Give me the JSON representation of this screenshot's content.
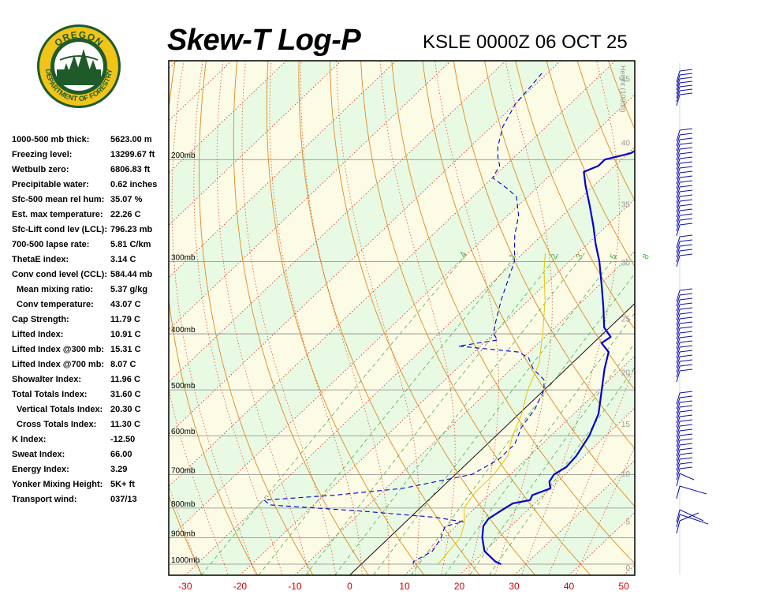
{
  "header": {
    "title": "Skew-T Log-P",
    "station": "KSLE 0000Z 06 OCT 25"
  },
  "logo": {
    "top_text": "OREGON",
    "bottom_text": "DEPARTMENT OF FORESTRY"
  },
  "indices": [
    {
      "label": "1000-500 mb thick:",
      "value": "5623.00 m",
      "indent": false
    },
    {
      "label": "Freezing level:",
      "value": "13299.67 ft",
      "indent": false
    },
    {
      "label": "Wetbulb zero:",
      "value": "6806.83 ft",
      "indent": false
    },
    {
      "label": "Precipitable water:",
      "value": "0.62 inches",
      "indent": false
    },
    {
      "label": "Sfc-500 mean rel hum:",
      "value": "35.07 %",
      "indent": false
    },
    {
      "label": "Est. max temperature:",
      "value": "22.26 C",
      "indent": false
    },
    {
      "label": "Sfc-Lift cond lev (LCL):",
      "value": "796.23 mb",
      "indent": false
    },
    {
      "label": "700-500 lapse rate:",
      "value": "5.81 C/km",
      "indent": false
    },
    {
      "label": "ThetaE index:",
      "value": "3.14 C",
      "indent": false
    },
    {
      "label": "Conv cond level (CCL):",
      "value": "584.44 mb",
      "indent": false
    },
    {
      "label": "Mean mixing ratio:",
      "value": "5.37 g/kg",
      "indent": true
    },
    {
      "label": "Conv temperature:",
      "value": "43.07 C",
      "indent": true
    },
    {
      "label": "Cap Strength:",
      "value": "11.79 C",
      "indent": false
    },
    {
      "label": "Lifted Index:",
      "value": "10.91 C",
      "indent": false
    },
    {
      "label": "Lifted Index @300 mb:",
      "value": "15.31 C",
      "indent": false
    },
    {
      "label": "Lifted Index @700 mb:",
      "value": "8.07 C",
      "indent": false
    },
    {
      "label": "Showalter Index:",
      "value": "11.96 C",
      "indent": false
    },
    {
      "label": "Total Totals Index:",
      "value": "31.60 C",
      "indent": false
    },
    {
      "label": "Vertical Totals Index:",
      "value": "20.30 C",
      "indent": true
    },
    {
      "label": "Cross Totals Index:",
      "value": "11.30 C",
      "indent": true
    },
    {
      "label": "K Index:",
      "value": "-12.50",
      "indent": false
    },
    {
      "label": "Sweat Index:",
      "value": "66.00",
      "indent": false
    },
    {
      "label": "Energy Index:",
      "value": "3.29",
      "indent": false
    },
    {
      "label": "Yonker Mixing Height:",
      "value": "5K+ ft",
      "indent": false
    },
    {
      "label": "Transport wind:",
      "value": "037/13",
      "indent": false
    }
  ],
  "chart_data": {
    "type": "line",
    "chart_kind": "skew-t log-p",
    "title": "Skew-T Log-P",
    "x_axis": {
      "ticks": [
        -30,
        -20,
        -10,
        0,
        10,
        20,
        30,
        40,
        50
      ],
      "range": [
        -33,
        52
      ],
      "label_color": "#cc0000"
    },
    "pressure_axis": {
      "ticks": [
        1000,
        900,
        800,
        700,
        600,
        500,
        400,
        300,
        200
      ],
      "tick_labels": [
        "1000mb",
        "900mb",
        "800mb",
        "700mb",
        "600mb",
        "500mb",
        "400mb",
        "300mb",
        "200mb"
      ],
      "range": [
        1045,
        135
      ]
    },
    "height_axis": {
      "label": "Height (1000ft)",
      "ticks": [
        0,
        5,
        10,
        15,
        20,
        25,
        30,
        35,
        40,
        45,
        50
      ]
    },
    "mixing_ratio_labels": [
      ".4",
      "1",
      "2",
      "3",
      "5",
      "8"
    ],
    "series": [
      {
        "role": "temperature",
        "color": "#0000cc",
        "style": "solid",
        "points": [
          [
            1000,
            25.5
          ],
          [
            990,
            24.0
          ],
          [
            950,
            20.0
          ],
          [
            900,
            17.0
          ],
          [
            860,
            15.0
          ],
          [
            835,
            14.5
          ],
          [
            800,
            15.5
          ],
          [
            785,
            16.0
          ],
          [
            775,
            18.5
          ],
          [
            760,
            18.0
          ],
          [
            740,
            20.0
          ],
          [
            720,
            18.5
          ],
          [
            700,
            18.0
          ],
          [
            680,
            18.8
          ],
          [
            650,
            18.5
          ],
          [
            600,
            17.0
          ],
          [
            550,
            14.5
          ],
          [
            500,
            10.5
          ],
          [
            460,
            7.0
          ],
          [
            430,
            4.5
          ],
          [
            415,
            1.5
          ],
          [
            405,
            2.0
          ],
          [
            390,
            -1.0
          ],
          [
            360,
            -5.0
          ],
          [
            330,
            -9.5
          ],
          [
            300,
            -14.5
          ],
          [
            280,
            -18.5
          ],
          [
            260,
            -22.5
          ],
          [
            240,
            -27.0
          ],
          [
            222,
            -31.5
          ],
          [
            210,
            -34.5
          ],
          [
            205,
            -33.0
          ],
          [
            200,
            -33.0
          ],
          [
            195,
            -29.5
          ],
          [
            180,
            -27.0
          ],
          [
            170,
            -24.0
          ],
          [
            160,
            -22.0
          ],
          [
            150,
            -20.5
          ],
          [
            142,
            -19.0
          ]
        ]
      },
      {
        "role": "dewpoint",
        "color": "#0000cc",
        "style": "dashed",
        "points": [
          [
            1000,
            9.5
          ],
          [
            990,
            9.0
          ],
          [
            950,
            10.5
          ],
          [
            900,
            9.5
          ],
          [
            860,
            8.0
          ],
          [
            845,
            10.5
          ],
          [
            830,
            4.5
          ],
          [
            810,
            -10.0
          ],
          [
            790,
            -28.0
          ],
          [
            775,
            -30.0
          ],
          [
            760,
            -18.0
          ],
          [
            740,
            -7.0
          ],
          [
            700,
            3.0
          ],
          [
            660,
            5.0
          ],
          [
            620,
            5.0
          ],
          [
            580,
            3.0
          ],
          [
            540,
            2.0
          ],
          [
            500,
            0.0
          ],
          [
            480,
            -2.0
          ],
          [
            460,
            -6.0
          ],
          [
            440,
            -9.0
          ],
          [
            430,
            -12.0
          ],
          [
            420,
            -24.0
          ],
          [
            410,
            -18.0
          ],
          [
            400,
            -20.0
          ],
          [
            380,
            -22.0
          ],
          [
            350,
            -25.0
          ],
          [
            300,
            -30.0
          ],
          [
            270,
            -35.0
          ],
          [
            250,
            -38.0
          ],
          [
            232,
            -42.0
          ],
          [
            225,
            -45.0
          ],
          [
            215,
            -50.0
          ],
          [
            205,
            -51.0
          ],
          [
            198,
            -53.0
          ],
          [
            190,
            -55.0
          ],
          [
            175,
            -58.0
          ],
          [
            160,
            -60.0
          ],
          [
            150,
            -60.5
          ],
          [
            142,
            -61.0
          ]
        ]
      },
      {
        "role": "wet-bulb / parcel trace",
        "color": "#e6c600",
        "style": "solid",
        "points": [
          [
            1000,
            14.0
          ],
          [
            950,
            13.5
          ],
          [
            900,
            13.0
          ],
          [
            850,
            11.0
          ],
          [
            800,
            8.0
          ],
          [
            750,
            7.0
          ],
          [
            700,
            7.0
          ],
          [
            650,
            6.0
          ],
          [
            600,
            3.0
          ],
          [
            550,
            0.5
          ],
          [
            500,
            -3.0
          ],
          [
            450,
            -6.0
          ],
          [
            400,
            -11.0
          ],
          [
            350,
            -17.0
          ],
          [
            310,
            -23.0
          ],
          [
            290,
            -26.0
          ]
        ]
      }
    ],
    "legend": "none",
    "grid": true
  }
}
